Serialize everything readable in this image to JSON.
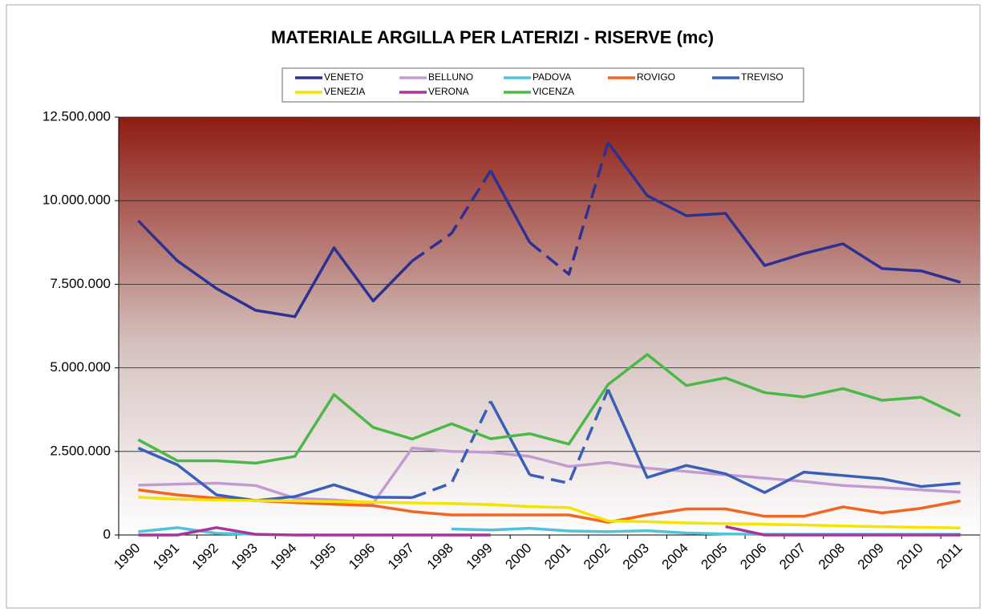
{
  "chart_data": {
    "type": "line",
    "title": "MATERIALE ARGILLA PER LATERIZI - RISERVE (mc)",
    "categories": [
      "1990",
      "1991",
      "1992",
      "1993",
      "1994",
      "1995",
      "1996",
      "1997",
      "1998",
      "1999",
      "2000",
      "2001",
      "2002",
      "2003",
      "2004",
      "2005",
      "2006",
      "2007",
      "2008",
      "2009",
      "2010",
      "2011"
    ],
    "ylim": [
      0,
      12500000
    ],
    "yticks": [
      {
        "value": 0,
        "label": "0"
      },
      {
        "value": 2500000,
        "label": "2.500.000"
      },
      {
        "value": 5000000,
        "label": "5.000.000"
      },
      {
        "value": 7500000,
        "label": "7.500.000"
      },
      {
        "value": 10000000,
        "label": "10.000.000"
      },
      {
        "value": 12500000,
        "label": "12.500.000"
      }
    ],
    "grid": true,
    "series": [
      {
        "name": "VENETO",
        "color": "#2e3192",
        "dashed": [
          [
            8,
            10
          ],
          [
            11,
            13
          ]
        ],
        "values": [
          9400000,
          8200000,
          7370000,
          6720000,
          6530000,
          8590000,
          7000000,
          8200000,
          9020000,
          10900000,
          8750000,
          7800000,
          11740000,
          10150000,
          9550000,
          9620000,
          8060000,
          8420000,
          8710000,
          7970000,
          7900000,
          7560000
        ]
      },
      {
        "name": "BELLUNO",
        "color": "#c39bd3",
        "values": [
          1490000,
          1520000,
          1550000,
          1480000,
          1100000,
          1050000,
          950000,
          2600000,
          2500000,
          2470000,
          2350000,
          2050000,
          2170000,
          2000000,
          1900000,
          1800000,
          1700000,
          1600000,
          1480000,
          1420000,
          1350000,
          1280000
        ]
      },
      {
        "name": "PADOVA",
        "color": "#4fc3d9",
        "values": [
          100000,
          220000,
          50000,
          20000,
          null,
          null,
          null,
          null,
          180000,
          150000,
          200000,
          120000,
          100000,
          130000,
          60000,
          30000,
          20000,
          20000,
          20000,
          20000,
          20000,
          20000
        ]
      },
      {
        "name": "ROVIGO",
        "color": "#f26522",
        "values": [
          1350000,
          1200000,
          1100000,
          1030000,
          970000,
          920000,
          880000,
          700000,
          600000,
          600000,
          600000,
          600000,
          380000,
          600000,
          780000,
          780000,
          560000,
          560000,
          840000,
          660000,
          800000,
          1020000
        ]
      },
      {
        "name": "TREVISO",
        "color": "#3a5fb8",
        "dashed": [
          [
            8,
            10
          ],
          [
            11,
            13
          ]
        ],
        "values": [
          2600000,
          2100000,
          1200000,
          1030000,
          1150000,
          1500000,
          1130000,
          1120000,
          1550000,
          4000000,
          1800000,
          1550000,
          4350000,
          1720000,
          2080000,
          1830000,
          1270000,
          1880000,
          1780000,
          1680000,
          1450000,
          1550000
        ]
      },
      {
        "name": "VENEZIA",
        "color": "#f5e400",
        "values": [
          1130000,
          1070000,
          1050000,
          1030000,
          1020000,
          1000000,
          980000,
          960000,
          940000,
          910000,
          850000,
          820000,
          420000,
          400000,
          360000,
          340000,
          320000,
          300000,
          270000,
          250000,
          230000,
          210000
        ]
      },
      {
        "name": "VERONA",
        "color": "#a9349b",
        "values": [
          0,
          0,
          220000,
          20000,
          0,
          0,
          0,
          0,
          0,
          0,
          null,
          null,
          null,
          null,
          null,
          250000,
          0,
          0,
          0,
          0,
          0,
          0
        ]
      },
      {
        "name": "VICENZA",
        "color": "#4cb848",
        "values": [
          2850000,
          2220000,
          2220000,
          2150000,
          2350000,
          4200000,
          3220000,
          2870000,
          3330000,
          2880000,
          3030000,
          2720000,
          4500000,
          5400000,
          4470000,
          4700000,
          4260000,
          4130000,
          4380000,
          4030000,
          4120000,
          3560000
        ]
      }
    ]
  }
}
